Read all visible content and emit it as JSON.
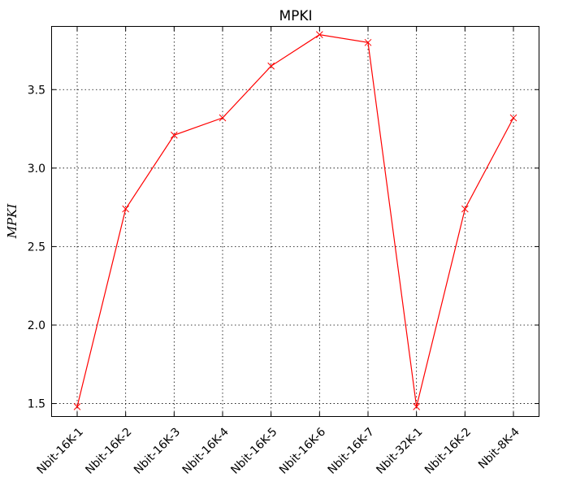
{
  "chart_data": {
    "type": "line",
    "title": "MPKI",
    "xlabel": "",
    "ylabel": "MPKI",
    "categories": [
      "Nbit-16K-1",
      "Nbit-16K-2",
      "Nbit-16K-3",
      "Nbit-16K-4",
      "Nbit-16K-5",
      "Nbit-16K-6",
      "Nbit-16K-7",
      "Nbit-32K-1",
      "Nbit-16K-2",
      "Nbit-8K-4"
    ],
    "series": [
      {
        "color": "#ff0000",
        "marker": "x",
        "values": [
          1.48,
          2.74,
          3.21,
          3.32,
          3.65,
          3.85,
          3.8,
          1.48,
          2.74,
          3.32
        ]
      }
    ],
    "ylim": [
      1.42,
      3.9
    ],
    "yticks": [
      1.5,
      2.0,
      2.5,
      3.0,
      3.5
    ],
    "ytick_labels": [
      "1.5",
      "2.0",
      "2.5",
      "3.0",
      "3.5"
    ],
    "grid": true
  }
}
